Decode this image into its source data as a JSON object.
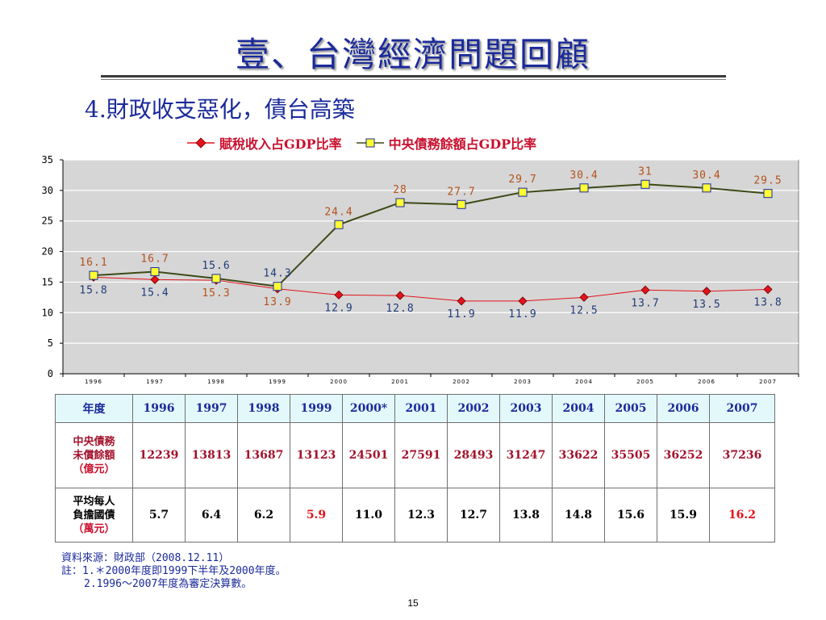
{
  "title": "壹、台灣經濟問題回顧",
  "subtitle": "4.財政收支惡化，債台高築",
  "colors": {
    "title": "#1a2a9a",
    "tax_series": "#e3131b",
    "debt_series": "#3d4a17",
    "marker_fill_debt": "#ffff33",
    "plot_bg": "#d6d6d6"
  },
  "chart_data": {
    "type": "line",
    "categories": [
      "1996",
      "1997",
      "1998",
      "1999",
      "2000",
      "2001",
      "2002",
      "2003",
      "2004",
      "2005",
      "2006",
      "2007"
    ],
    "ylim": [
      0,
      35
    ],
    "yticks": [
      0,
      5,
      10,
      15,
      20,
      25,
      30,
      35
    ],
    "grid": true,
    "legend_position": "top",
    "series": [
      {
        "name": "賦稅收入占GDP比率",
        "marker": "diamond",
        "color": "#e3131b",
        "values": [
          15.8,
          15.4,
          15.3,
          13.9,
          12.9,
          12.8,
          11.9,
          11.9,
          12.5,
          13.7,
          13.5,
          13.8
        ]
      },
      {
        "name": "中央債務餘額占GDP比率",
        "marker": "square",
        "color": "#3d4a17",
        "values": [
          16.1,
          16.7,
          15.6,
          14.3,
          24.4,
          28,
          27.7,
          29.7,
          30.4,
          31,
          30.4,
          29.5
        ]
      }
    ],
    "labels_tax": [
      "15.8",
      "15.4",
      "15.3",
      "13.9",
      "12.9",
      "12.8",
      "11.9",
      "11.9",
      "12.5",
      "13.7",
      "13.5",
      "13.8"
    ],
    "labels_debt": [
      "16.1",
      "16.7",
      "15.6",
      "14.3",
      "24.4",
      "28",
      "27.7",
      "29.7",
      "30.4",
      "31",
      "30.4",
      "29.5"
    ]
  },
  "table": {
    "header_label": "年度",
    "years": [
      "1996",
      "1997",
      "1998",
      "1999",
      "2000*",
      "2001",
      "2002",
      "2003",
      "2004",
      "2005",
      "2006",
      "2007"
    ],
    "row1_label_line1": "中央債務",
    "row1_label_line2": "未償餘額",
    "row1_unit": "（億元）",
    "row1_values": [
      "12239",
      "13813",
      "13687",
      "13123",
      "24501",
      "27591",
      "28493",
      "31247",
      "33622",
      "35505",
      "36252",
      "37236"
    ],
    "row2_label_line1": "平均每人",
    "row2_label_line2": "負擔國債",
    "row2_unit": "（萬元）",
    "row2_values": [
      "5.7",
      "6.4",
      "6.2",
      "5.9",
      "11.0",
      "12.3",
      "12.7",
      "13.8",
      "14.8",
      "15.6",
      "15.9",
      "16.2"
    ]
  },
  "notes": {
    "line1": "資料來源：財政部（2008.12.11）",
    "line2": "註：1.＊2000年度即1999下半年及2000年度。",
    "line3": "2.1996～2007年度為審定決算數。"
  },
  "page_number": "15"
}
